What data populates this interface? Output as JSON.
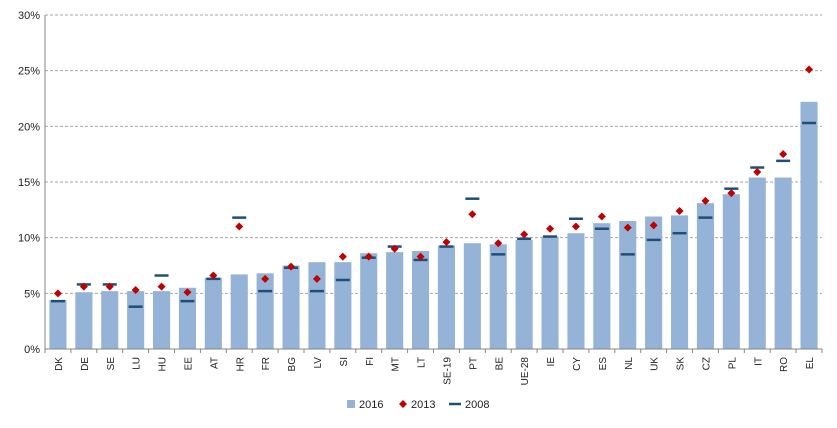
{
  "chart_data": {
    "type": "bar",
    "title": "",
    "xlabel": "",
    "ylabel": "",
    "categories": [
      "DK",
      "DE",
      "SE",
      "LU",
      "HU",
      "EE",
      "AT",
      "HR",
      "FR",
      "BG",
      "LV",
      "SI",
      "FI",
      "MT",
      "LT",
      "SE-19",
      "PT",
      "BE",
      "UE-28",
      "IE",
      "CY",
      "ES",
      "NL",
      "UK",
      "SK",
      "CZ",
      "PL",
      "IT",
      "RO",
      "EL"
    ],
    "ylim": [
      0,
      30
    ],
    "yticks": [
      0,
      5,
      10,
      15,
      20,
      25,
      30
    ],
    "ytick_labels": [
      "0%",
      "5%",
      "10%",
      "15%",
      "20%",
      "25%",
      "30%"
    ],
    "grid": true,
    "legend_position": "bottom",
    "series": [
      {
        "name": "2016",
        "kind": "bar",
        "color": "#95b3d7",
        "values": [
          4.4,
          5.1,
          5.2,
          5.2,
          5.2,
          5.5,
          6.4,
          6.7,
          6.8,
          7.5,
          7.8,
          7.8,
          8.6,
          8.7,
          8.8,
          9.3,
          9.5,
          9.4,
          9.8,
          10.1,
          10.4,
          11.3,
          11.5,
          11.9,
          12.0,
          13.1,
          13.9,
          15.4,
          15.4,
          22.2
        ]
      },
      {
        "name": "2013",
        "kind": "marker",
        "marker": "diamond",
        "color": "#c00000",
        "values": [
          5.0,
          5.6,
          5.6,
          5.3,
          5.6,
          5.1,
          6.6,
          11.0,
          6.3,
          7.4,
          6.3,
          8.3,
          8.3,
          9.0,
          8.3,
          9.6,
          12.1,
          9.5,
          10.3,
          10.8,
          11.0,
          11.9,
          10.9,
          11.1,
          12.4,
          13.3,
          14.0,
          15.9,
          17.5,
          25.1
        ]
      },
      {
        "name": "2008",
        "kind": "dash",
        "color": "#1f4e79",
        "values": [
          4.3,
          5.8,
          5.8,
          3.8,
          6.6,
          4.3,
          6.3,
          11.8,
          5.2,
          7.3,
          5.2,
          6.2,
          8.2,
          9.2,
          8.0,
          9.2,
          13.5,
          8.5,
          9.9,
          10.1,
          11.7,
          10.8,
          8.5,
          9.8,
          10.4,
          11.8,
          14.4,
          16.3,
          16.9,
          20.3
        ]
      }
    ]
  }
}
